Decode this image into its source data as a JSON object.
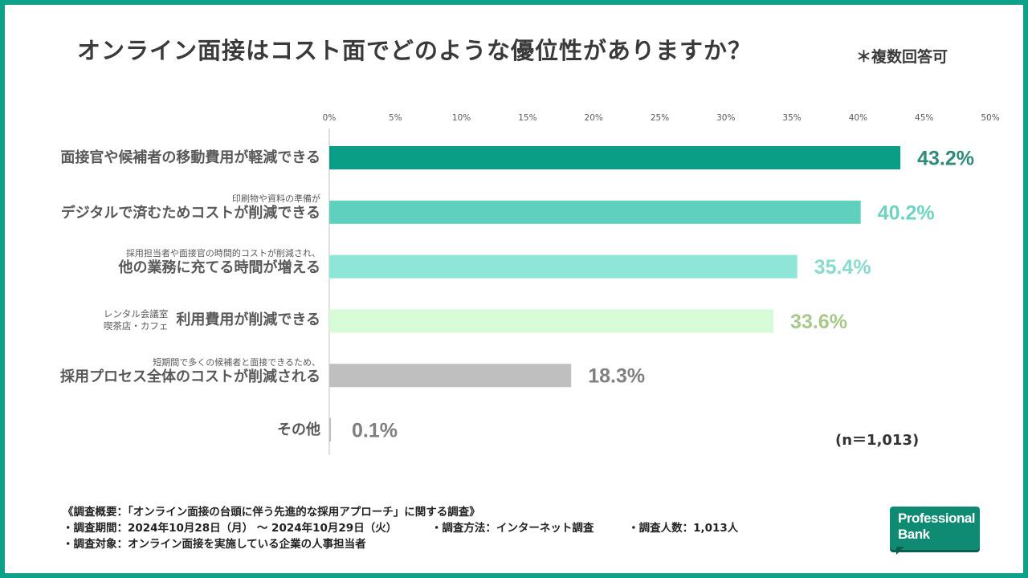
{
  "title": "オンライン面接はコスト面でどのような優位性がありますか？",
  "subnote": "＊複数回答可",
  "chart_data": {
    "type": "bar",
    "orientation": "horizontal",
    "title": "オンライン面接はコスト面でどのような優位性がありますか？",
    "xlim": [
      0,
      50
    ],
    "ticks": [
      "0%",
      "5%",
      "10%",
      "15%",
      "20%",
      "25%",
      "30%",
      "35%",
      "40%",
      "45%",
      "50%"
    ],
    "tick_values": [
      0,
      5,
      10,
      15,
      20,
      25,
      30,
      35,
      40,
      45,
      50
    ],
    "categories": [
      {
        "sub": "",
        "main": "面接官や候補者の移動費用が軽減できる",
        "sub_inline": ""
      },
      {
        "sub": "印刷物や資料の準備が",
        "main": "デジタルで済むためコストが削減できる",
        "sub_inline": ""
      },
      {
        "sub": "採用担当者や面接官の時間的コストが削減され、",
        "main": "他の業務に充てる時間が増える",
        "sub_inline": ""
      },
      {
        "sub": "",
        "main": "利用費用が削減できる",
        "sub_inline": [
          "レンタル会議室",
          "喫茶店・カフェ"
        ]
      },
      {
        "sub": "短期間で多くの候補者と面接できるため、",
        "main": "採用プロセス全体のコストが削減される",
        "sub_inline": ""
      },
      {
        "sub": "",
        "main": "その他",
        "sub_inline": ""
      }
    ],
    "values": [
      43.2,
      40.2,
      35.4,
      33.6,
      18.3,
      0.1
    ],
    "value_labels": [
      "43.2%",
      "40.2%",
      "35.4%",
      "33.6%",
      "18.3%",
      "0.1%"
    ],
    "bar_colors": [
      "#0a9e86",
      "#5fd0be",
      "#8de6d6",
      "#d7fbd7",
      "#bfbfbf",
      "#bfbfbf"
    ],
    "label_colors": [
      "#2e8b7a",
      "#6fd3c3",
      "#88dccd",
      "#a8c98a",
      "#808080",
      "#808080"
    ]
  },
  "n_note": "(n＝1,013)",
  "footer": {
    "line1": "《調査概要：「オンライン面接の台頭に伴う先進的な採用アプローチ」に関する調査》",
    "line2a": "・調査期間：2024年10月28日（月） 〜 2024年10月29日（火）",
    "line2b": "・調査方法：インターネット調査",
    "line2c": "・調査人数：1,013人",
    "line3": "・調査対象：オンライン面接を実施している企業の人事担当者"
  },
  "logo": {
    "line1": "Professional",
    "line2": "Bank"
  },
  "colors": {
    "frame": "#0fa08a"
  }
}
